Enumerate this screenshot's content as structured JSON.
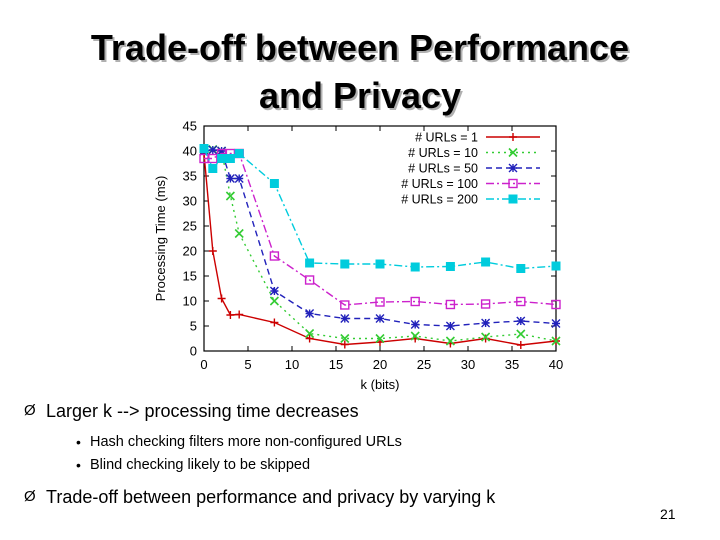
{
  "slide": {
    "title_line1": "Trade-off between Performance",
    "title_line2": "and Privacy",
    "page_number": "21"
  },
  "bullets": [
    {
      "marker": "Ø",
      "text": "Larger k --> processing time decreases"
    },
    {
      "marker": "Ø",
      "text": "Trade-off between performance and privacy by varying k"
    }
  ],
  "sub_bullets": [
    {
      "marker": "•",
      "text": "Hash checking filters more non-configured URLs"
    },
    {
      "marker": "•",
      "text": "Blind checking likely to be skipped"
    }
  ],
  "chart_data": {
    "type": "line",
    "xlabel": "k (bits)",
    "ylabel": "Processing Time (ms)",
    "xlim": [
      0,
      40
    ],
    "ylim": [
      0,
      45
    ],
    "xticks": [
      0,
      5,
      10,
      15,
      20,
      25,
      30,
      35,
      40
    ],
    "yticks": [
      0,
      5,
      10,
      15,
      20,
      25,
      30,
      35,
      40,
      45
    ],
    "grid": false,
    "legend_position": "top-right",
    "series": [
      {
        "name": "# URLs = 1",
        "color": "#cc0000",
        "dash": "solid",
        "marker": "plus",
        "x": [
          0,
          1,
          2,
          3,
          4,
          8,
          12,
          16,
          20,
          24,
          28,
          32,
          36,
          40
        ],
        "y": [
          39.5,
          20,
          10.5,
          7.2,
          7.3,
          5.7,
          2.5,
          1.3,
          1.8,
          2.5,
          1.5,
          2.5,
          1.2,
          2.0
        ]
      },
      {
        "name": "# URLs = 10",
        "color": "#33cc33",
        "dash": "dots",
        "marker": "x",
        "x": [
          0,
          1,
          2,
          3,
          4,
          8,
          12,
          16,
          20,
          24,
          28,
          32,
          36,
          40
        ],
        "y": [
          40,
          40.3,
          40,
          31,
          23.5,
          10,
          3.5,
          2.5,
          2.5,
          3,
          2,
          2.8,
          3.4,
          2.0
        ]
      },
      {
        "name": "# URLs = 50",
        "color": "#2222bb",
        "dash": "dashes",
        "marker": "asterisk",
        "x": [
          0,
          1,
          2,
          3,
          4,
          8,
          12,
          16,
          20,
          24,
          28,
          32,
          36,
          40
        ],
        "y": [
          40,
          40.2,
          40,
          34.5,
          34.5,
          12,
          7.5,
          6.5,
          6.5,
          5.3,
          5.0,
          5.6,
          6,
          5.5
        ]
      },
      {
        "name": "# URLs = 100",
        "color": "#cc22cc",
        "dash": "dashdot",
        "marker": "square-open",
        "x": [
          0,
          1,
          2,
          3,
          4,
          8,
          12,
          16,
          20,
          24,
          28,
          32,
          36,
          40
        ],
        "y": [
          38.5,
          38.5,
          39.5,
          39.5,
          39.5,
          19,
          14.2,
          9.2,
          9.8,
          9.9,
          9.3,
          9.4,
          9.9,
          9.3
        ]
      },
      {
        "name": "# URLs = 200",
        "color": "#00ccdd",
        "dash": "dashdot",
        "marker": "square-filled",
        "x": [
          0,
          1,
          2,
          3,
          4,
          8,
          12,
          16,
          20,
          24,
          28,
          32,
          36,
          40
        ],
        "y": [
          40.5,
          36.5,
          38.5,
          38.5,
          39.5,
          33.5,
          17.6,
          17.4,
          17.4,
          16.8,
          16.9,
          17.8,
          16.5,
          17.0
        ]
      }
    ]
  }
}
